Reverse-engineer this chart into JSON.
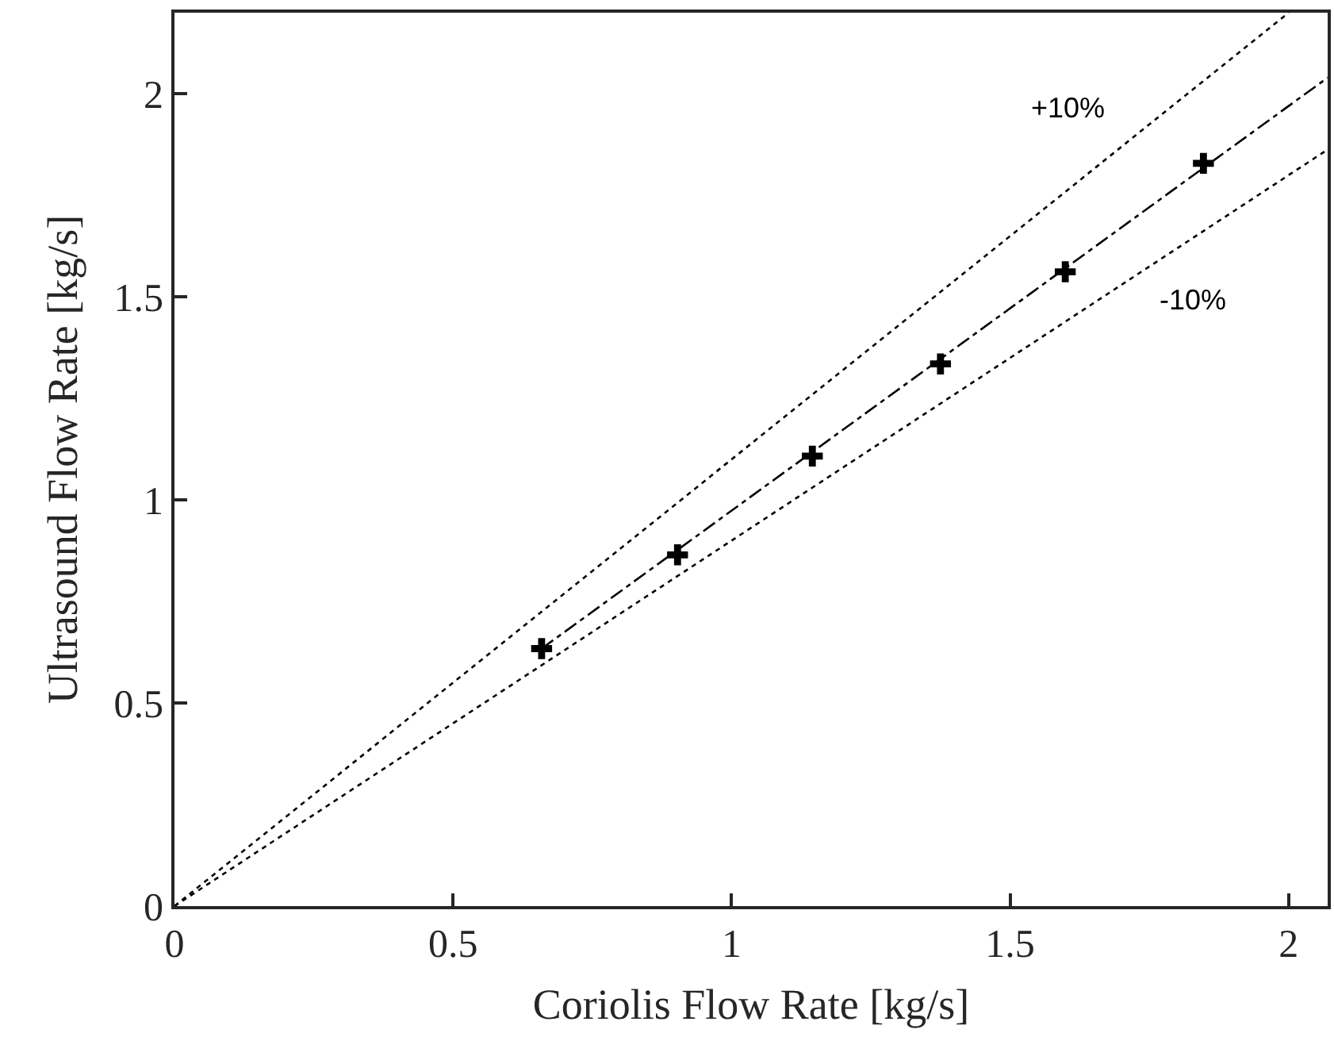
{
  "chart_data": {
    "type": "line",
    "xlabel": "Coriolis Flow Rate [kg/s]",
    "ylabel": "Ultrasound Flow Rate [kg/s]",
    "xlim": [
      0,
      2.07
    ],
    "ylim": [
      0,
      2.2
    ],
    "xticks": [
      0,
      0.5,
      1,
      1.5,
      2
    ],
    "yticks": [
      0,
      0.5,
      1,
      1.5,
      2
    ],
    "series": [
      {
        "line_style": "dotted",
        "marker": "none",
        "color": "#000000",
        "x": [
          0,
          2.0
        ],
        "values": [
          0,
          2.2
        ]
      },
      {
        "line_style": "dotted",
        "marker": "none",
        "color": "#000000",
        "x": [
          0,
          2.07
        ],
        "values": [
          0,
          1.863
        ]
      },
      {
        "line_style": "dashdot",
        "marker": "none",
        "color": "#000000",
        "x": [
          0.659,
          2.07
        ],
        "values": [
          0.634,
          2.04
        ]
      },
      {
        "type": "scatter",
        "marker": "cross",
        "color": "#000000",
        "x": [
          0.659,
          0.903,
          1.145,
          1.375,
          1.599,
          1.847
        ],
        "values": [
          0.634,
          0.865,
          1.108,
          1.335,
          1.562,
          1.829
        ]
      }
    ],
    "annotations": [
      "+10%",
      "-10%"
    ]
  }
}
